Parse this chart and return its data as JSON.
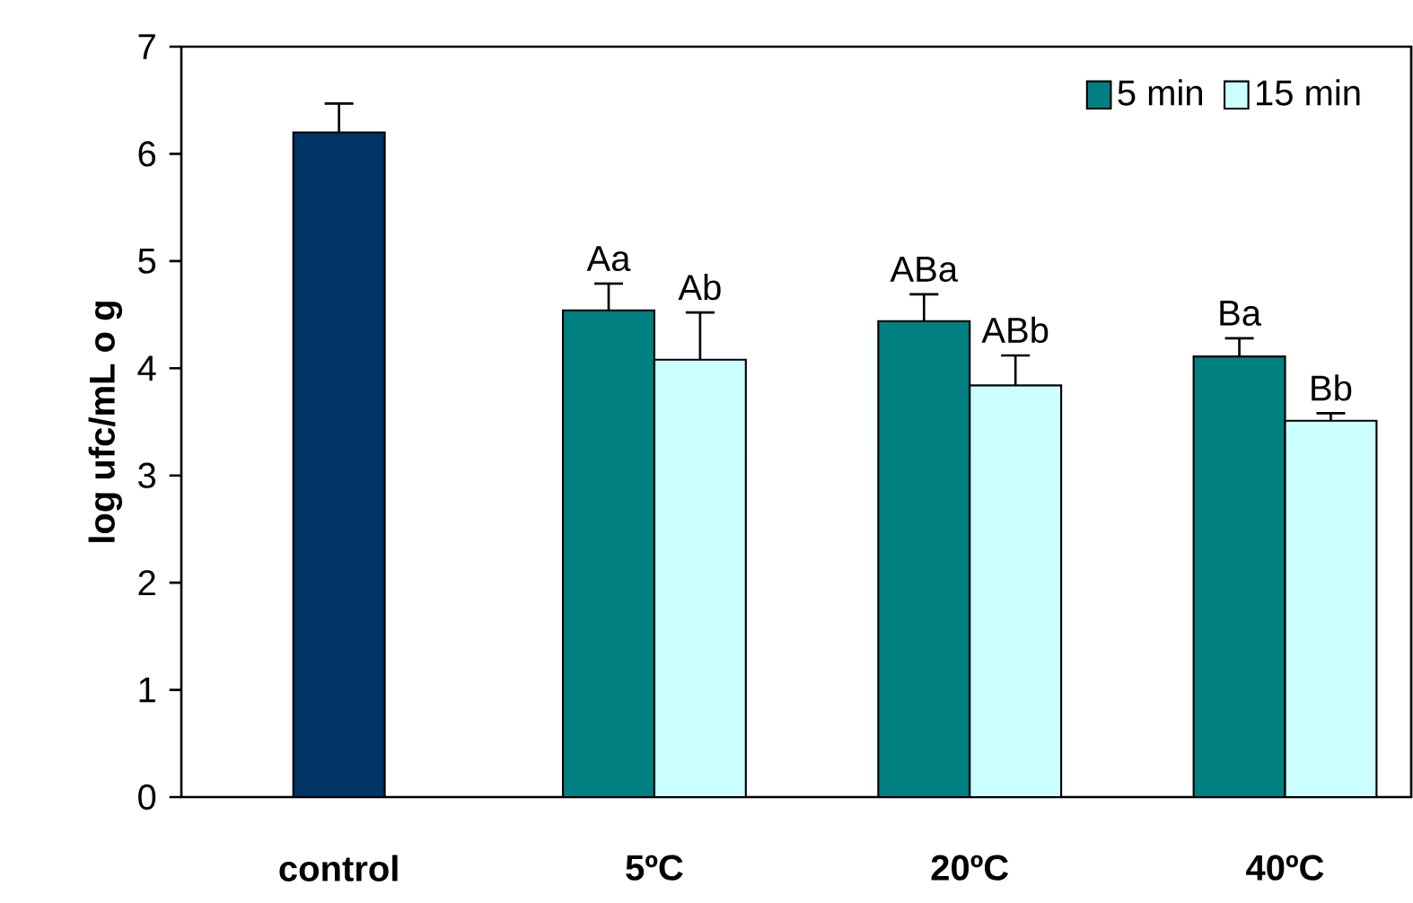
{
  "chart_data": {
    "type": "bar",
    "ylabel": "log ufc/mL o g",
    "categories": [
      "control",
      "5ºC",
      "20ºC",
      "40ºC"
    ],
    "series": [
      {
        "color": "#003366",
        "values": [
          6.2,
          null,
          null,
          null
        ],
        "errors": [
          [
            6.2,
            6.47
          ],
          null,
          null,
          null
        ]
      },
      {
        "name": "5 min",
        "color": "#008080",
        "values": [
          null,
          4.54,
          4.44,
          4.11
        ],
        "errors": [
          null,
          [
            4.54,
            4.79
          ],
          [
            4.44,
            4.69
          ],
          [
            4.11,
            4.28
          ]
        ],
        "value_labels": [
          null,
          "Aa",
          "ABa",
          "Ba"
        ]
      },
      {
        "name": "15 min",
        "color": "#ccffff",
        "values": [
          null,
          4.08,
          3.84,
          3.51
        ],
        "errors": [
          null,
          [
            4.08,
            4.52
          ],
          [
            3.84,
            4.12
          ],
          [
            3.51,
            3.58
          ]
        ],
        "value_labels": [
          null,
          "Ab",
          "ABb",
          "Bb"
        ]
      }
    ],
    "ylim": [
      0,
      7
    ],
    "yticks": [
      0,
      1,
      2,
      3,
      4,
      5,
      6,
      7
    ],
    "legend": "top right"
  }
}
